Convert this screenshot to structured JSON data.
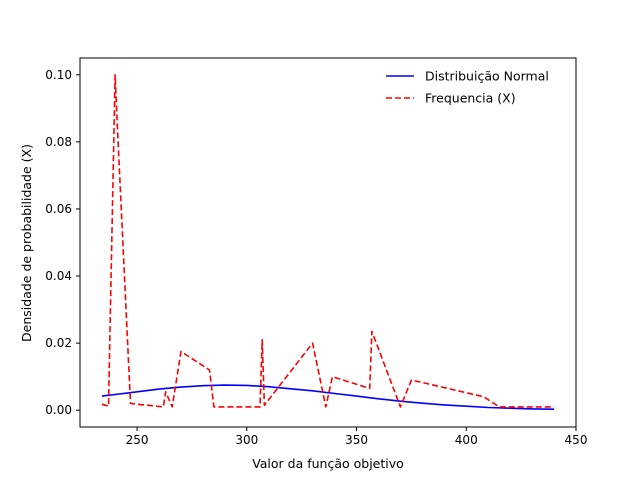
{
  "chart_data": {
    "type": "line",
    "title": "",
    "xlabel": "Valor da função objetivo",
    "ylabel": "Densidade de probabilidade (X)",
    "xlim": [
      224,
      450
    ],
    "ylim": [
      -0.005,
      0.105
    ],
    "x_ticks": [
      250,
      300,
      350,
      400,
      450
    ],
    "y_ticks": [
      0.0,
      0.02,
      0.04,
      0.06,
      0.08,
      0.1
    ],
    "y_tick_labels": [
      "0.00",
      "0.02",
      "0.04",
      "0.06",
      "0.08",
      "0.10"
    ],
    "grid": false,
    "legend_position": "top-right",
    "series": [
      {
        "name": "Distribuição Normal",
        "color": "#0000ff",
        "dash": "solid",
        "points": [
          [
            234,
            0.0042
          ],
          [
            240,
            0.0047
          ],
          [
            250,
            0.0055
          ],
          [
            260,
            0.0063
          ],
          [
            270,
            0.0069
          ],
          [
            280,
            0.0073
          ],
          [
            290,
            0.0075
          ],
          [
            300,
            0.0074
          ],
          [
            310,
            0.007
          ],
          [
            320,
            0.0064
          ],
          [
            330,
            0.0058
          ],
          [
            340,
            0.005
          ],
          [
            350,
            0.0042
          ],
          [
            360,
            0.0034
          ],
          [
            370,
            0.0027
          ],
          [
            380,
            0.0021
          ],
          [
            390,
            0.0016
          ],
          [
            400,
            0.0012
          ],
          [
            410,
            0.0008
          ],
          [
            420,
            0.0006
          ],
          [
            430,
            0.0004
          ],
          [
            440,
            0.0003
          ]
        ]
      },
      {
        "name": "Frequencia (X)",
        "color": "#ff0000",
        "dash": "dashed",
        "points": [
          [
            234,
            0.0018
          ],
          [
            237,
            0.0012
          ],
          [
            240,
            0.1
          ],
          [
            241,
            0.085
          ],
          [
            247,
            0.002
          ],
          [
            262,
            0.001
          ],
          [
            263,
            0.0055
          ],
          [
            266,
            0.001
          ],
          [
            270,
            0.0175
          ],
          [
            283,
            0.012
          ],
          [
            285,
            0.001
          ],
          [
            306,
            0.001
          ],
          [
            307,
            0.021
          ],
          [
            308,
            0.0015
          ],
          [
            330,
            0.02
          ],
          [
            336,
            0.001
          ],
          [
            339,
            0.01
          ],
          [
            356,
            0.0065
          ],
          [
            357,
            0.0235
          ],
          [
            370,
            0.001
          ],
          [
            375,
            0.009
          ],
          [
            408,
            0.004
          ],
          [
            415,
            0.001
          ],
          [
            440,
            0.001
          ]
        ]
      }
    ]
  }
}
